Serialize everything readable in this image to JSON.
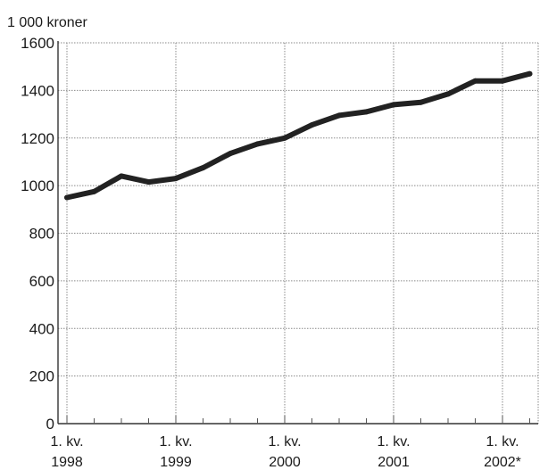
{
  "chart_data": {
    "type": "line",
    "unit_label": "1 000 kroner",
    "ylim": [
      0,
      1600
    ],
    "y_ticks": [
      "0",
      "200",
      "400",
      "600",
      "800",
      "1000",
      "1200",
      "1400",
      "1600"
    ],
    "x_tick_labels": [
      {
        "line1": "1. kv.",
        "line2": "1998"
      },
      {
        "line1": "1. kv.",
        "line2": "1999"
      },
      {
        "line1": "1. kv.",
        "line2": "2000"
      },
      {
        "line1": "1. kv.",
        "line2": "2001"
      },
      {
        "line1": "1. kv.",
        "line2": "2002*"
      }
    ],
    "x": [
      "1998K1",
      "1998K2",
      "1998K3",
      "1998K4",
      "1999K1",
      "1999K2",
      "1999K3",
      "1999K4",
      "2000K1",
      "2000K2",
      "2000K3",
      "2000K4",
      "2001K1",
      "2001K2",
      "2001K3",
      "2001K4",
      "2002K1",
      "2002K2"
    ],
    "series": [
      {
        "values": [
          950,
          975,
          1040,
          1015,
          1030,
          1075,
          1135,
          1175,
          1200,
          1255,
          1295,
          1310,
          1340,
          1350,
          1385,
          1440,
          1440,
          1470
        ]
      }
    ],
    "grid": true,
    "line_color": "#222222",
    "grid_color": "#8a8a8a"
  }
}
